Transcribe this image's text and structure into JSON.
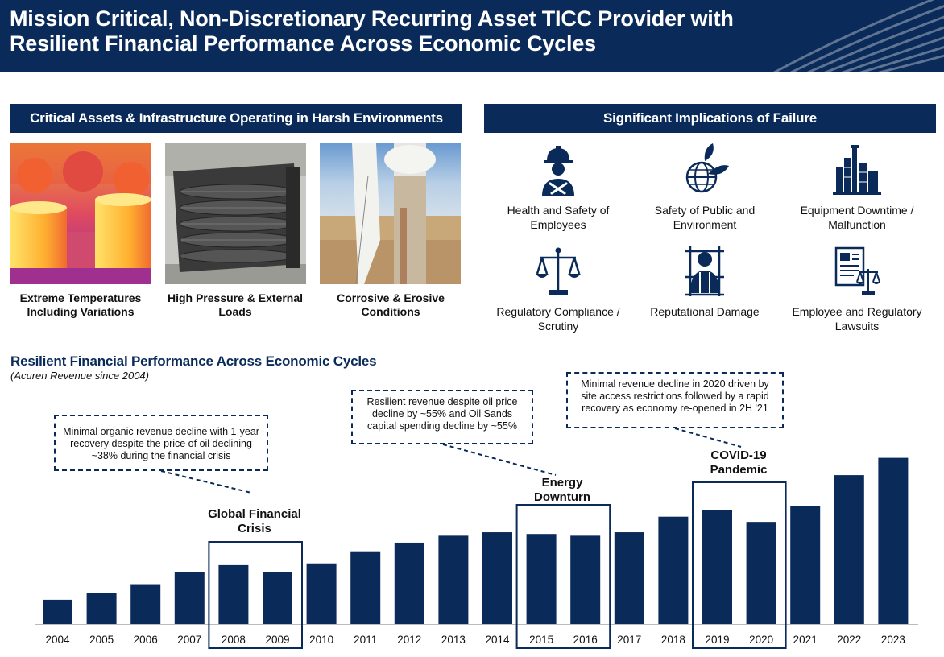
{
  "header": {
    "title": "Mission Critical, Non-Discretionary Recurring Asset TICC Provider with Resilient Financial Performance Across Economic Cycles",
    "bg_color": "#0a2a5a"
  },
  "left_panel": {
    "banner": "Critical Assets & Infrastructure Operating in Harsh Environments",
    "photos": [
      {
        "caption": "Extreme Temperatures Including Variations",
        "icon": "thermal-storage-tanks-image"
      },
      {
        "caption": "High Pressure & External Loads",
        "icon": "heat-exchanger-image"
      },
      {
        "caption": "Corrosive & Erosive Conditions",
        "icon": "wind-turbine-image"
      }
    ]
  },
  "right_panel": {
    "banner": "Significant Implications of Failure",
    "items": [
      {
        "label": "Health and Safety of Employees",
        "icon": "worker-tools-icon"
      },
      {
        "label": "Safety of Public and Environment",
        "icon": "globe-leaf-icon"
      },
      {
        "label": "Equipment Downtime / Malfunction",
        "icon": "refinery-icon"
      },
      {
        "label": "Regulatory Compliance / Scrutiny",
        "icon": "scales-icon"
      },
      {
        "label": "Reputational Damage",
        "icon": "person-behind-bars-icon"
      },
      {
        "label": "Employee and Regulatory Lawsuits",
        "icon": "document-scales-icon"
      }
    ]
  },
  "chart": {
    "title": "Resilient Financial Performance Across Economic Cycles",
    "subtitle": "(Acuren Revenue since 2004)",
    "bar_color": "#0a2a5a",
    "callouts": {
      "gfc": "Minimal organic revenue decline with 1-year recovery despite the price of oil declining ~38% during the financial crisis",
      "energy": "Resilient revenue despite oil price decline by ~55% and Oil Sands capital spending decline by ~55%",
      "covid": "Minimal revenue decline in 2020 driven by site access restrictions followed by a rapid recovery as economy re-opened in 2H '21"
    },
    "events": {
      "gfc": "Global Financial Crisis",
      "energy": "Energy Downturn",
      "covid": "COVID-19 Pandemic"
    }
  },
  "chart_data": {
    "type": "bar",
    "title": "Resilient Financial Performance Across Economic Cycles",
    "subtitle": "(Acuren Revenue since 2004)",
    "categories": [
      "2004",
      "2005",
      "2006",
      "2007",
      "2008",
      "2009",
      "2010",
      "2011",
      "2012",
      "2013",
      "2014",
      "2015",
      "2016",
      "2017",
      "2018",
      "2019",
      "2020",
      "2021",
      "2022",
      "2023"
    ],
    "values": [
      14,
      18,
      23,
      30,
      34,
      30,
      35,
      42,
      47,
      51,
      53,
      52,
      51,
      53,
      62,
      66,
      59,
      68,
      86,
      96
    ],
    "ylim": [
      0,
      100
    ],
    "highlight_groups": [
      {
        "label": "Global Financial Crisis",
        "categories": [
          "2008",
          "2009"
        ]
      },
      {
        "label": "Energy Downturn",
        "categories": [
          "2015",
          "2016"
        ]
      },
      {
        "label": "COVID-19 Pandemic",
        "categories": [
          "2019",
          "2020"
        ]
      }
    ],
    "grid": false,
    "legend": "none"
  }
}
